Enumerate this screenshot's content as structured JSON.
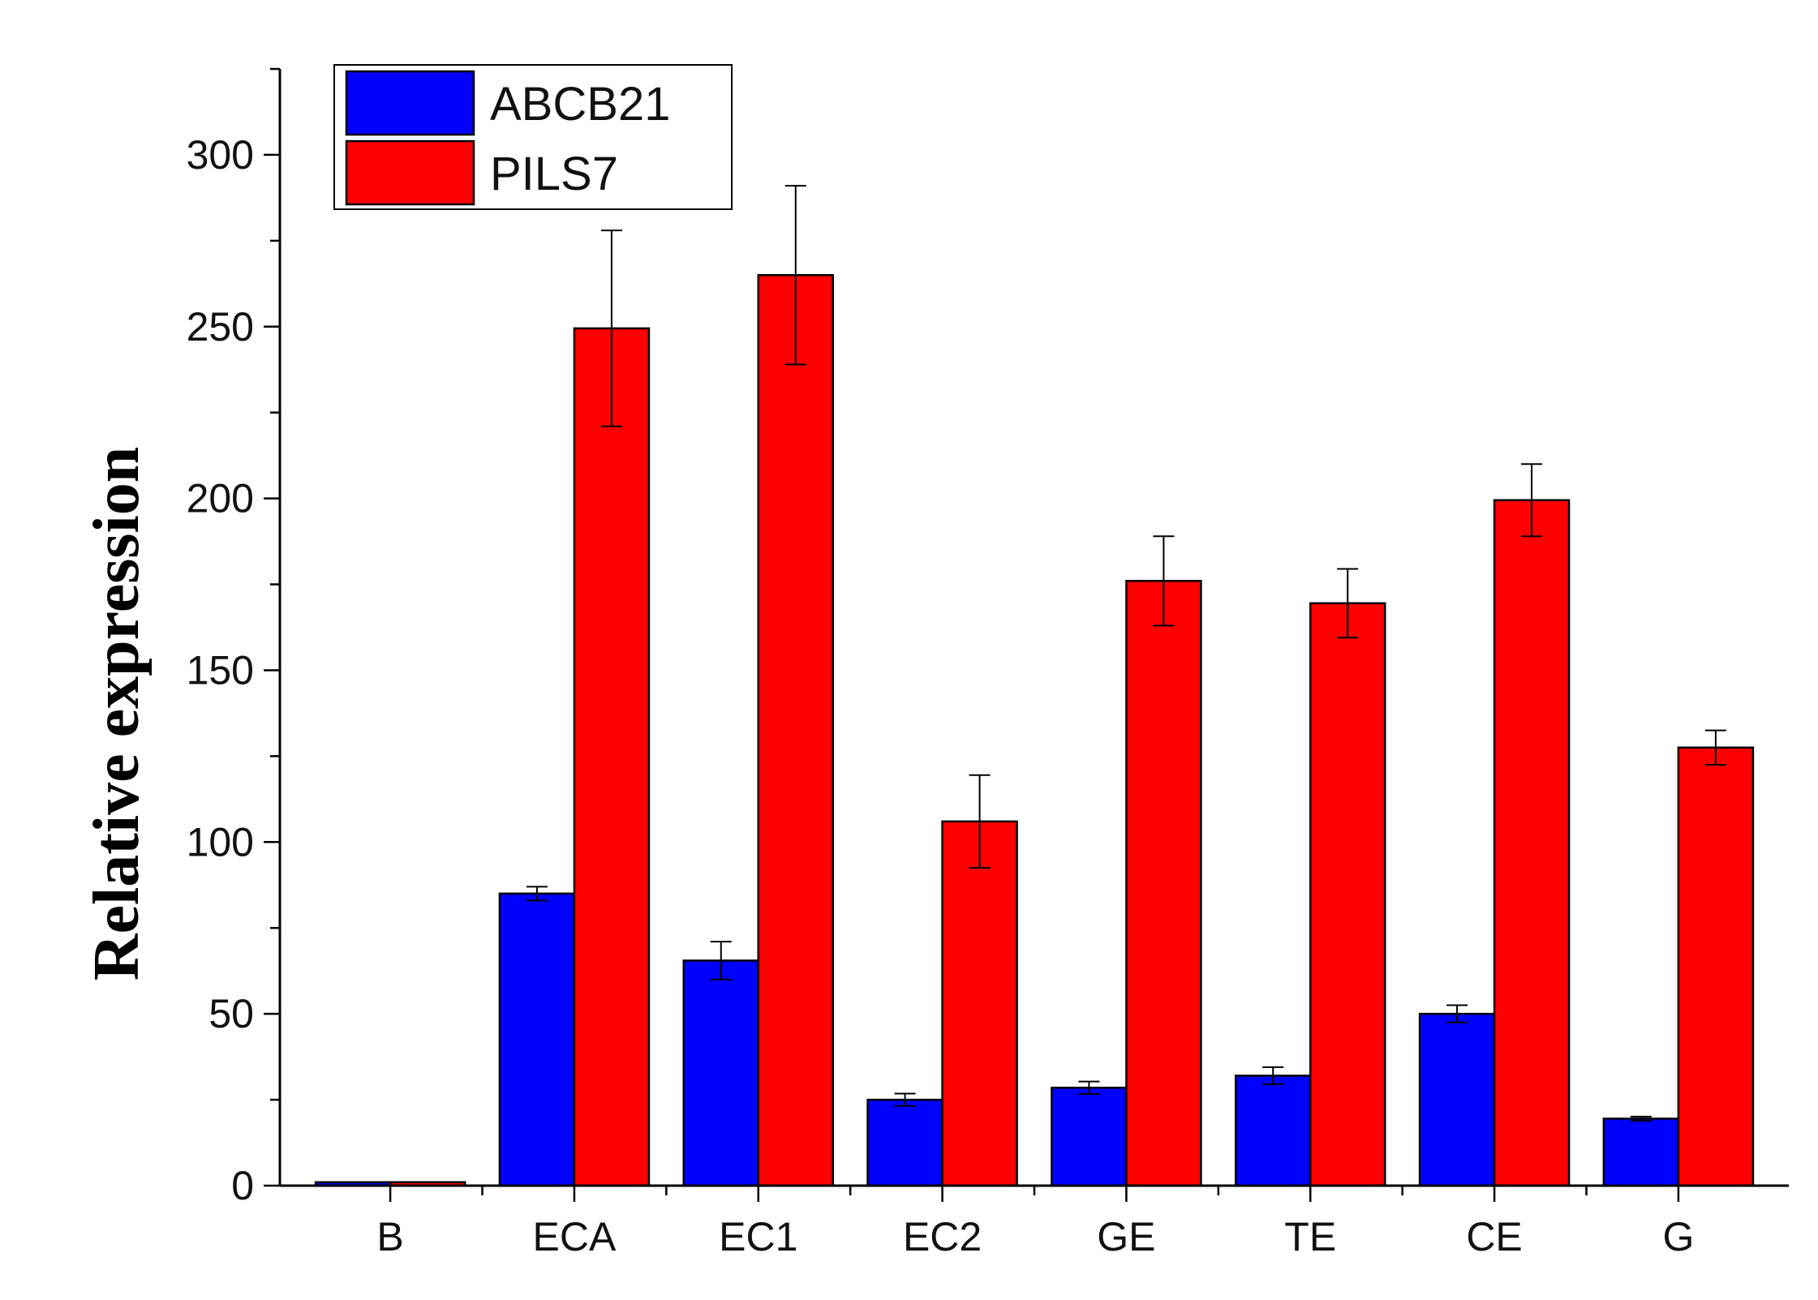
{
  "chart_data": {
    "type": "bar",
    "xlabel": "",
    "ylabel": "Relative expression",
    "ylim": [
      0,
      325
    ],
    "yticks": [
      "0",
      "50",
      "100",
      "150",
      "200",
      "250",
      "300"
    ],
    "categories": [
      "B",
      "ECA",
      "EC1",
      "EC2",
      "GE",
      "TE",
      "CE",
      "G"
    ],
    "series": [
      {
        "name": "ABCB21",
        "color": "#0000ff",
        "values": [
          1,
          85,
          65.5,
          25,
          28.5,
          32,
          50,
          19.5
        ],
        "errors": [
          0,
          2,
          5.5,
          1.8,
          1.8,
          2.5,
          2.5,
          0.6
        ]
      },
      {
        "name": "PILS7",
        "color": "#ff0000",
        "values": [
          1,
          249.5,
          265,
          106,
          176,
          169.5,
          199.5,
          127.5
        ],
        "errors": [
          0,
          28.5,
          26,
          13.5,
          13,
          10,
          10.5,
          5
        ]
      }
    ],
    "legend_position": "top-left",
    "grid": false
  }
}
